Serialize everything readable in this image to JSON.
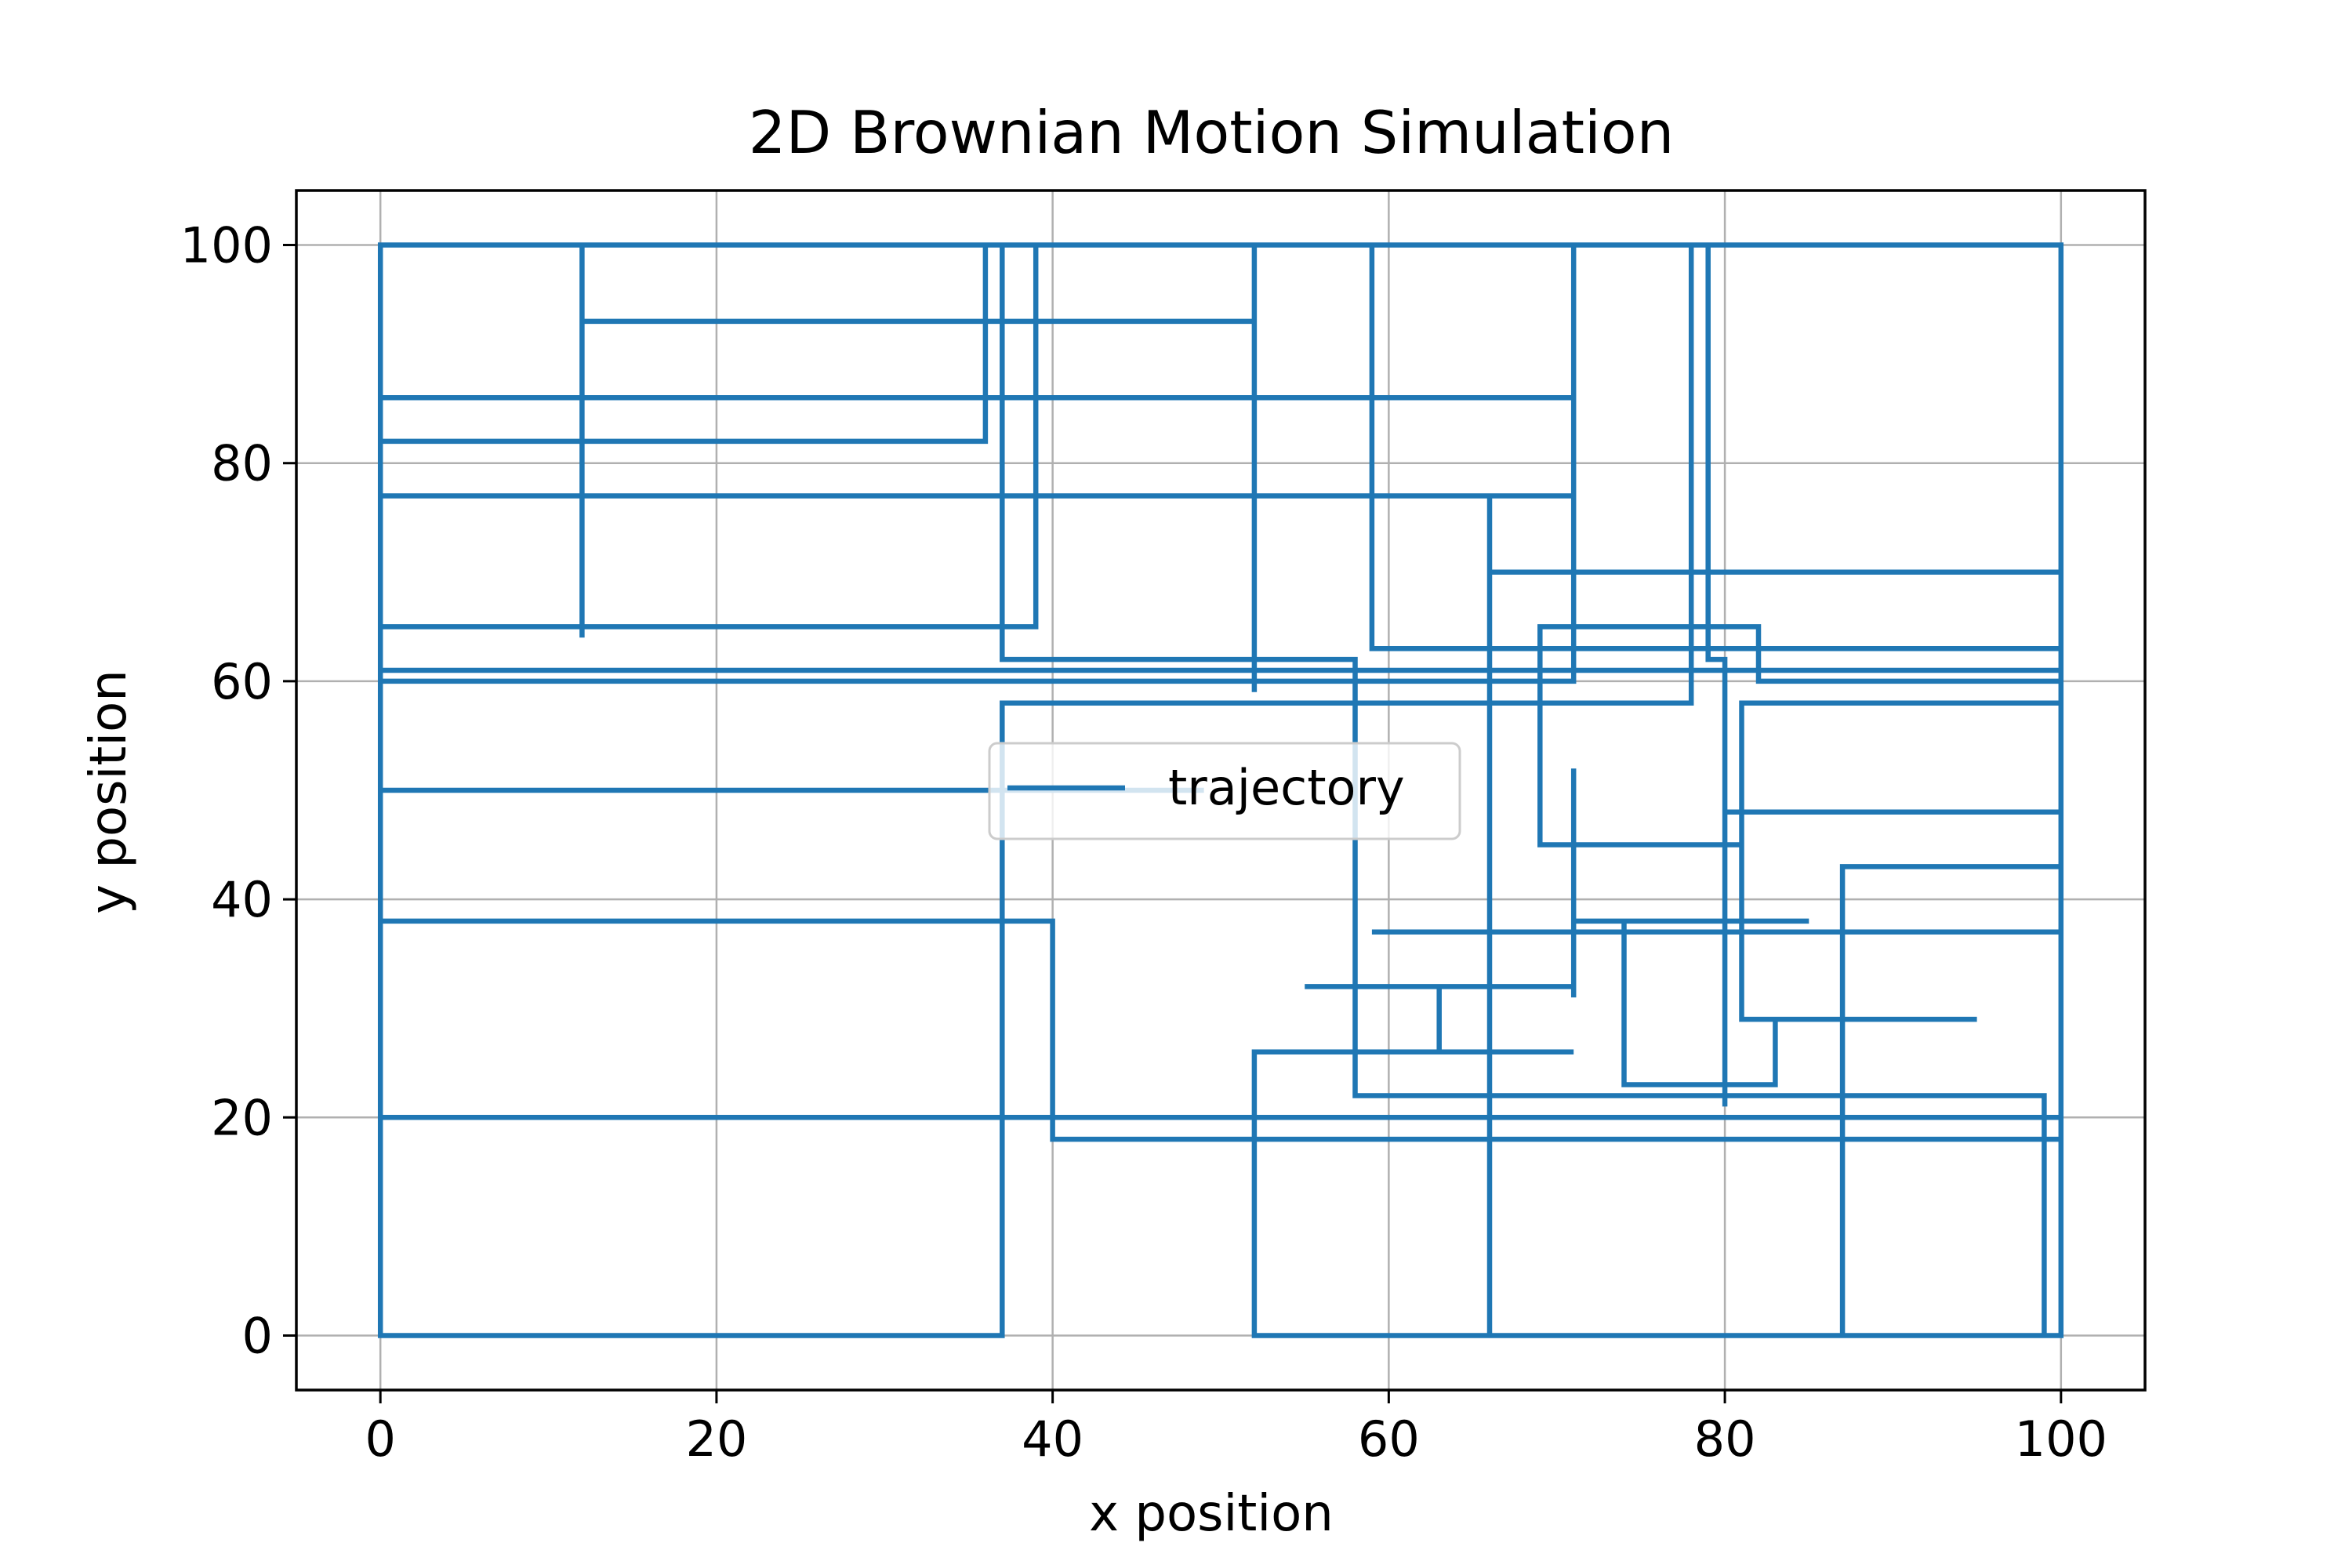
{
  "chart_data": {
    "type": "line",
    "title": "2D Brownian Motion Simulation",
    "xlabel": "x position",
    "ylabel": "y position",
    "xlim": [
      -5,
      105
    ],
    "ylim": [
      -5,
      105
    ],
    "xticks": [
      0,
      20,
      40,
      60,
      80,
      100
    ],
    "yticks": [
      0,
      20,
      40,
      60,
      80,
      100
    ],
    "grid": true,
    "legend_position": "center",
    "colors": {
      "line": "#1f77b4",
      "grid": "#b0b0b0",
      "axes": "#000000"
    },
    "series": [
      {
        "name": "trajectory",
        "points": [
          [
            95,
            29
          ],
          [
            81,
            29
          ],
          [
            81,
            58
          ],
          [
            100,
            58
          ],
          [
            100,
            0
          ],
          [
            87,
            0
          ],
          [
            87,
            43
          ],
          [
            100,
            43
          ],
          [
            100,
            48
          ],
          [
            80,
            48
          ],
          [
            80,
            21
          ],
          [
            80,
            62
          ],
          [
            79,
            62
          ],
          [
            79,
            100
          ],
          [
            78,
            100
          ],
          [
            78,
            58
          ],
          [
            37,
            58
          ],
          [
            37,
            0
          ],
          [
            0,
            0
          ],
          [
            0,
            100
          ],
          [
            12,
            100
          ],
          [
            12,
            64
          ],
          [
            12,
            93
          ],
          [
            52,
            93
          ],
          [
            52,
            59
          ],
          [
            52,
            100
          ],
          [
            39,
            100
          ],
          [
            39,
            65
          ],
          [
            0,
            65
          ],
          [
            0,
            82
          ],
          [
            36,
            82
          ],
          [
            36,
            100
          ],
          [
            37,
            100
          ],
          [
            37,
            62
          ],
          [
            58,
            62
          ],
          [
            58,
            22
          ],
          [
            99,
            22
          ],
          [
            99,
            0
          ],
          [
            66,
            0
          ],
          [
            66,
            77
          ],
          [
            0,
            77
          ],
          [
            0,
            86
          ],
          [
            71,
            86
          ],
          [
            71,
            60
          ],
          [
            0,
            60
          ],
          [
            0,
            61
          ],
          [
            100,
            61
          ],
          [
            100,
            70
          ],
          [
            66,
            70
          ],
          [
            66,
            0
          ],
          [
            52,
            0
          ],
          [
            52,
            26
          ],
          [
            71,
            26
          ],
          [
            63,
            26
          ],
          [
            63,
            32
          ],
          [
            55,
            32
          ],
          [
            71,
            32
          ],
          [
            71,
            31
          ],
          [
            71,
            52
          ],
          [
            71,
            38
          ],
          [
            85,
            38
          ],
          [
            74,
            38
          ],
          [
            74,
            23
          ],
          [
            83,
            23
          ],
          [
            83,
            29
          ],
          [
            81,
            29
          ],
          [
            81,
            45
          ],
          [
            69,
            45
          ],
          [
            69,
            65
          ],
          [
            82,
            65
          ],
          [
            82,
            60
          ],
          [
            100,
            60
          ],
          [
            100,
            100
          ],
          [
            59,
            100
          ],
          [
            59,
            63
          ],
          [
            100,
            63
          ],
          [
            100,
            37
          ],
          [
            59,
            37
          ],
          [
            100,
            37
          ],
          [
            100,
            18
          ],
          [
            40,
            18
          ],
          [
            40,
            38
          ],
          [
            0,
            38
          ],
          [
            0,
            50
          ],
          [
            49,
            50
          ],
          [
            0,
            50
          ],
          [
            0,
            20
          ],
          [
            100,
            20
          ],
          [
            100,
            100
          ],
          [
            71,
            100
          ],
          [
            71,
            77
          ],
          [
            0,
            77
          ],
          [
            0,
            100
          ],
          [
            72,
            100
          ]
        ]
      }
    ]
  }
}
